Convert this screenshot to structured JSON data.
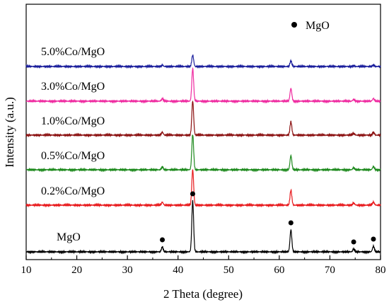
{
  "chart_data": {
    "type": "line",
    "xlabel": "2 Theta (degree)",
    "ylabel": "Intensity (a.u.)",
    "xlim": [
      10,
      80
    ],
    "x_ticks": [
      "10",
      "20",
      "30",
      "40",
      "50",
      "60",
      "70",
      "80"
    ],
    "y_ticks_labeled": false,
    "grid": false,
    "legend": {
      "position": "top-right",
      "entries": [
        {
          "marker": "filled-circle",
          "label": "MgO"
        }
      ]
    },
    "series": [
      {
        "name": "MgO",
        "color": "#000000",
        "peaks": [
          {
            "x": 36.9,
            "height": 0.35
          },
          {
            "x": 42.9,
            "height": 3.6
          },
          {
            "x": 62.3,
            "height": 1.55
          },
          {
            "x": 74.7,
            "height": 0.2
          },
          {
            "x": 78.6,
            "height": 0.4
          }
        ],
        "markers_x": [
          36.9,
          42.9,
          62.3,
          74.7,
          78.6
        ]
      },
      {
        "name": "0.2%Co/MgO",
        "color": "#e8191c",
        "peaks": [
          {
            "x": 36.9,
            "height": 0.2
          },
          {
            "x": 42.9,
            "height": 2.5
          },
          {
            "x": 62.3,
            "height": 1.05
          },
          {
            "x": 74.7,
            "height": 0.15
          },
          {
            "x": 78.6,
            "height": 0.22
          }
        ]
      },
      {
        "name": "0.5%Co/MgO",
        "color": "#1e8a1e",
        "peaks": [
          {
            "x": 36.9,
            "height": 0.2
          },
          {
            "x": 42.9,
            "height": 2.5
          },
          {
            "x": 62.3,
            "height": 1.0
          },
          {
            "x": 74.7,
            "height": 0.15
          },
          {
            "x": 78.6,
            "height": 0.22
          }
        ]
      },
      {
        "name": "1.0%Co/MgO",
        "color": "#8b1010",
        "peaks": [
          {
            "x": 36.9,
            "height": 0.2
          },
          {
            "x": 42.9,
            "height": 2.4
          },
          {
            "x": 62.3,
            "height": 0.95
          },
          {
            "x": 74.7,
            "height": 0.12
          },
          {
            "x": 78.6,
            "height": 0.2
          }
        ]
      },
      {
        "name": "3.0%Co/MgO",
        "color": "#ef2aa0",
        "peaks": [
          {
            "x": 36.9,
            "height": 0.18
          },
          {
            "x": 42.9,
            "height": 2.3
          },
          {
            "x": 62.3,
            "height": 0.9
          },
          {
            "x": 74.7,
            "height": 0.12
          },
          {
            "x": 78.6,
            "height": 0.18
          }
        ]
      },
      {
        "name": "5.0%Co/MgO",
        "color": "#1b1f9c",
        "peaks": [
          {
            "x": 36.9,
            "height": 0.1
          },
          {
            "x": 42.9,
            "height": 0.8
          },
          {
            "x": 62.3,
            "height": 0.4
          },
          {
            "x": 74.7,
            "height": 0.06
          },
          {
            "x": 78.6,
            "height": 0.1
          }
        ]
      }
    ]
  }
}
